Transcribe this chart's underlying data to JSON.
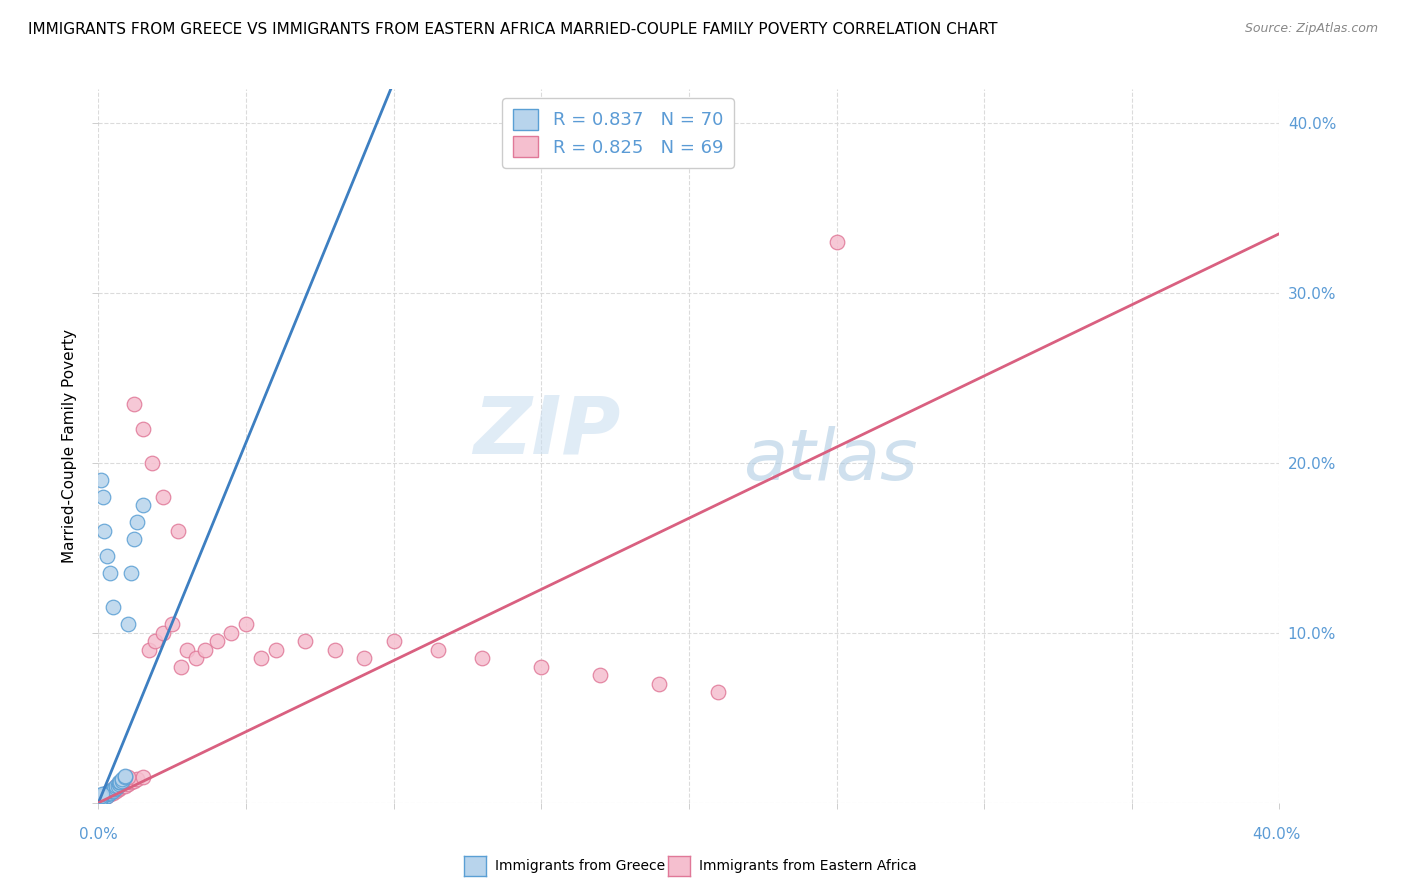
{
  "title": "IMMIGRANTS FROM GREECE VS IMMIGRANTS FROM EASTERN AFRICA MARRIED-COUPLE FAMILY POVERTY CORRELATION CHART",
  "source": "Source: ZipAtlas.com",
  "ylabel": "Married-Couple Family Poverty",
  "R_greece": 0.837,
  "N_greece": 70,
  "R_africa": 0.825,
  "N_africa": 69,
  "greece_fill": "#b8d4ec",
  "greece_edge": "#5a9fd4",
  "africa_fill": "#f5bfcf",
  "africa_edge": "#e07898",
  "line_greece": "#3d7fc1",
  "line_africa": "#d96080",
  "watermark_zip": "ZIP",
  "watermark_atlas": "atlas",
  "watermark_color_zip": "#c5d8ec",
  "watermark_color_atlas": "#9dbdd8",
  "legend_label_greece": "Immigrants from Greece",
  "legend_label_africa": "Immigrants from Eastern Africa",
  "xlim": [
    0.0,
    0.4
  ],
  "ylim": [
    0.0,
    0.42
  ],
  "tick_color": "#5b9bd5",
  "grid_color": "#d8d8d8",
  "title_fontsize": 11,
  "source_fontsize": 9,
  "axis_label_fontsize": 11,
  "tick_fontsize": 11,
  "greece_x": [
    0.0002,
    0.0003,
    0.0004,
    0.0005,
    0.0006,
    0.0007,
    0.0008,
    0.001,
    0.001,
    0.001,
    0.001,
    0.0012,
    0.0013,
    0.0014,
    0.0015,
    0.0016,
    0.0018,
    0.002,
    0.002,
    0.002,
    0.0022,
    0.0024,
    0.0025,
    0.003,
    0.003,
    0.003,
    0.0032,
    0.0035,
    0.004,
    0.004,
    0.0042,
    0.0045,
    0.005,
    0.005,
    0.0052,
    0.006,
    0.006,
    0.0065,
    0.007,
    0.007,
    0.0072,
    0.008,
    0.008,
    0.009,
    0.009,
    0.01,
    0.011,
    0.012,
    0.013,
    0.015,
    0.0001,
    0.0001,
    0.0002,
    0.0002,
    0.0003,
    0.0003,
    0.0004,
    0.0005,
    0.0006,
    0.0007,
    0.0008,
    0.0009,
    0.001,
    0.0011,
    0.001,
    0.0015,
    0.002,
    0.003,
    0.004,
    0.005
  ],
  "greece_y": [
    0.001,
    0.001,
    0.001,
    0.002,
    0.001,
    0.002,
    0.002,
    0.001,
    0.002,
    0.003,
    0.003,
    0.002,
    0.003,
    0.003,
    0.003,
    0.004,
    0.004,
    0.003,
    0.004,
    0.005,
    0.004,
    0.005,
    0.005,
    0.004,
    0.005,
    0.006,
    0.006,
    0.006,
    0.006,
    0.007,
    0.007,
    0.007,
    0.007,
    0.008,
    0.008,
    0.009,
    0.01,
    0.01,
    0.011,
    0.012,
    0.012,
    0.013,
    0.014,
    0.015,
    0.016,
    0.105,
    0.135,
    0.155,
    0.165,
    0.175,
    0.001,
    0.001,
    0.001,
    0.002,
    0.001,
    0.001,
    0.002,
    0.002,
    0.002,
    0.003,
    0.003,
    0.004,
    0.004,
    0.005,
    0.19,
    0.18,
    0.16,
    0.145,
    0.135,
    0.115
  ],
  "africa_x": [
    0.0002,
    0.0004,
    0.0005,
    0.0006,
    0.0008,
    0.001,
    0.001,
    0.0012,
    0.0015,
    0.002,
    0.002,
    0.0025,
    0.003,
    0.003,
    0.0035,
    0.004,
    0.004,
    0.005,
    0.005,
    0.006,
    0.006,
    0.007,
    0.007,
    0.008,
    0.009,
    0.01,
    0.011,
    0.012,
    0.013,
    0.015,
    0.017,
    0.019,
    0.022,
    0.025,
    0.028,
    0.03,
    0.033,
    0.036,
    0.04,
    0.045,
    0.05,
    0.055,
    0.06,
    0.07,
    0.08,
    0.09,
    0.1,
    0.115,
    0.13,
    0.15,
    0.17,
    0.19,
    0.21,
    0.25,
    0.0003,
    0.0005,
    0.001,
    0.002,
    0.003,
    0.004,
    0.005,
    0.006,
    0.008,
    0.01,
    0.012,
    0.015,
    0.018,
    0.022,
    0.027
  ],
  "africa_y": [
    0.001,
    0.001,
    0.002,
    0.002,
    0.002,
    0.002,
    0.003,
    0.003,
    0.003,
    0.003,
    0.004,
    0.004,
    0.004,
    0.005,
    0.005,
    0.005,
    0.006,
    0.006,
    0.007,
    0.007,
    0.008,
    0.008,
    0.009,
    0.01,
    0.01,
    0.011,
    0.012,
    0.013,
    0.014,
    0.015,
    0.09,
    0.095,
    0.1,
    0.105,
    0.08,
    0.09,
    0.085,
    0.09,
    0.095,
    0.1,
    0.105,
    0.085,
    0.09,
    0.095,
    0.09,
    0.085,
    0.095,
    0.09,
    0.085,
    0.08,
    0.075,
    0.07,
    0.065,
    0.33,
    0.002,
    0.003,
    0.004,
    0.005,
    0.006,
    0.007,
    0.008,
    0.01,
    0.012,
    0.015,
    0.235,
    0.22,
    0.2,
    0.18,
    0.16
  ],
  "greece_line_x0": 0.0,
  "greece_line_x1": 0.099,
  "greece_line_y0": 0.0,
  "greece_line_y1": 0.42,
  "africa_line_x0": 0.0,
  "africa_line_x1": 0.4,
  "africa_line_y0": 0.0,
  "africa_line_y1": 0.335
}
